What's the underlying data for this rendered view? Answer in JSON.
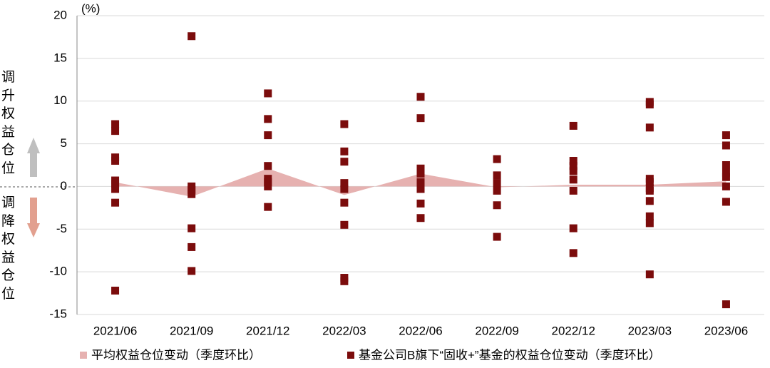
{
  "chart_data": {
    "type": "combo",
    "unit_label": "(%)",
    "annotations": [
      "调升权益仓位",
      "调降权益仓位"
    ],
    "categories": [
      "2021/06",
      "2021/09",
      "2021/12",
      "2022/03",
      "2022/06",
      "2022/09",
      "2022/12",
      "2023/03",
      "2023/06"
    ],
    "series": [
      {
        "name": "平均权益仓位变动（季度环比）",
        "type": "area",
        "color": "#e6b1b0",
        "values": [
          0.5,
          -1.2,
          2.1,
          -1.0,
          1.5,
          -0.1,
          0.2,
          0.2,
          0.6
        ]
      },
      {
        "name": "基金公司B旗下“固收+”基金的权益仓位变动（季度环比）",
        "type": "scatter",
        "color": "#7b0c0c",
        "values": [
          [
            7.3,
            6.5,
            3.4,
            3.0,
            0.7,
            0.3,
            -0.3,
            -1.9,
            -12.2
          ],
          [
            17.6,
            0,
            -0.4,
            -0.9,
            -4.9,
            -7.1,
            -9.9
          ],
          [
            10.9,
            7.9,
            6.0,
            2.4,
            0.9,
            0.5,
            0,
            -2.4
          ],
          [
            7.3,
            4.1,
            2.9,
            0.4,
            -0.3,
            -1.9,
            -4.5,
            -10.7,
            -11.1
          ],
          [
            10.5,
            8.0,
            2.1,
            1.5,
            0.5,
            -0.3,
            -2.0,
            -3.7
          ],
          [
            3.2,
            1.3,
            0.4,
            -0.5,
            -2.2,
            -5.9
          ],
          [
            7.1,
            3.0,
            2.4,
            1.8,
            0.8,
            -0.5,
            -4.9,
            -7.8
          ],
          [
            9.9,
            9.6,
            6.9,
            0.9,
            0.5,
            -0.2,
            -0.5,
            -1.7,
            -3.5,
            -4.3,
            -10.3
          ],
          [
            6.0,
            4.8,
            2.5,
            1.6,
            1.1,
            0,
            -1.8,
            -13.8
          ]
        ]
      }
    ],
    "ylim": [
      -15,
      20
    ],
    "yticks": [
      -15,
      -10,
      -5,
      0,
      5,
      10,
      15,
      20
    ],
    "grid": true
  }
}
